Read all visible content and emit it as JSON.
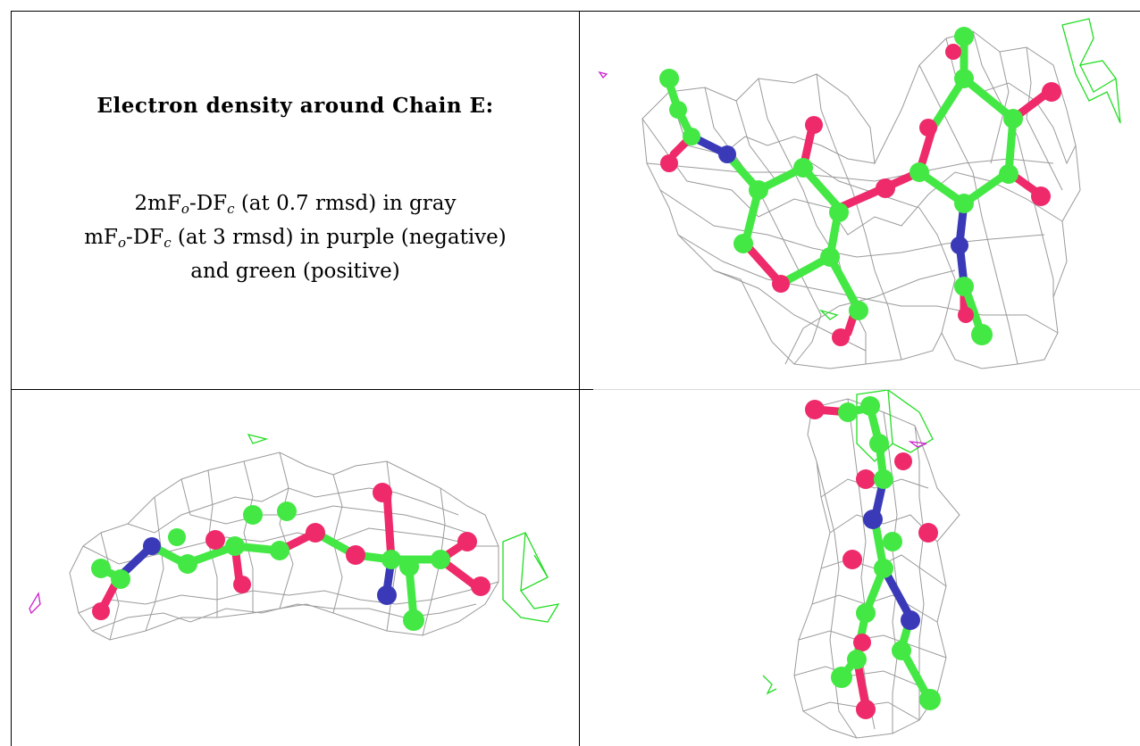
{
  "caption": {
    "title": "Electron density around Chain E:",
    "line1_prefix": "2mF",
    "line1_o": "o",
    "line1_mid": "-DF",
    "line1_c": "c",
    "line1_suffix": " (at 0.7 rmsd) in gray",
    "line2_prefix": "mF",
    "line2_o": "o",
    "line2_mid": "-DF",
    "line2_c": "c",
    "line2_suffix": " (at 3 rmsd) in purple (negative)",
    "line3": "and green (positive)"
  },
  "colors": {
    "carbon": "#44e844",
    "oxygen": "#ee2a6a",
    "nitrogen": "#3a3ab8",
    "mesh_gray": "#9a9a9a",
    "positive_green": "#22dd22",
    "negative_purple": "#cc22cc"
  },
  "panels": [
    {
      "view": "top-right"
    },
    {
      "view": "bottom-left"
    },
    {
      "view": "bottom-right"
    }
  ]
}
